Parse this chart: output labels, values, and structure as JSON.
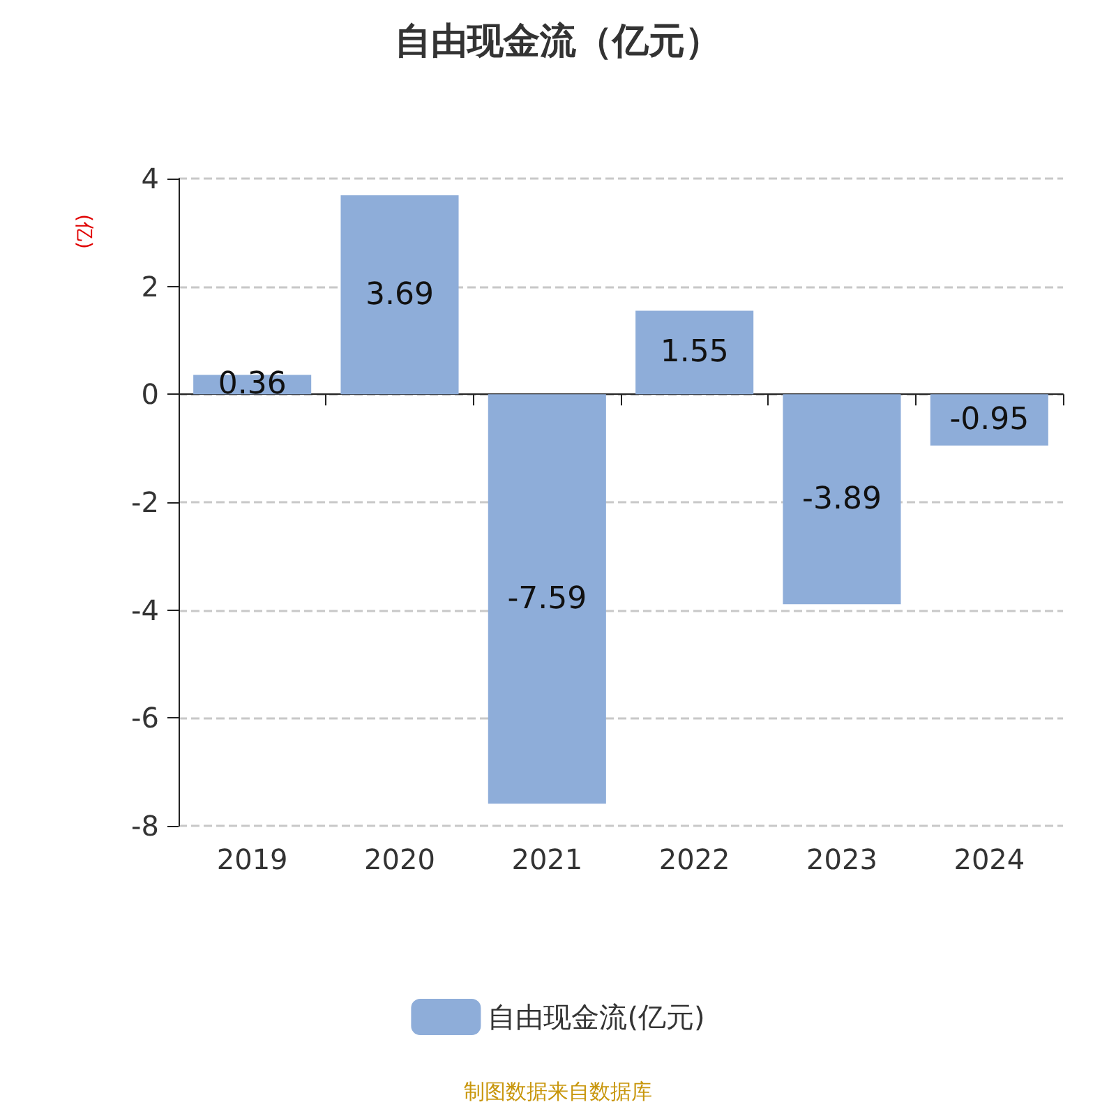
{
  "chart_data": {
    "type": "bar",
    "title": "自由现金流（亿元）",
    "ylabel": "(亿)",
    "categories": [
      "2019",
      "2020",
      "2021",
      "2022",
      "2023",
      "2024"
    ],
    "series": [
      {
        "name": "自由现金流(亿元)",
        "color": "#8eadd9",
        "values": [
          0.36,
          3.69,
          -7.59,
          1.55,
          -3.89,
          -0.95
        ]
      }
    ],
    "ylim": [
      -8,
      4
    ],
    "yticks": [
      -8,
      -6,
      -4,
      -2,
      0,
      2,
      4
    ],
    "grid": "y",
    "legend": "bottom",
    "data_labels": true,
    "annotations": [
      "制图数据来自数据库"
    ]
  }
}
